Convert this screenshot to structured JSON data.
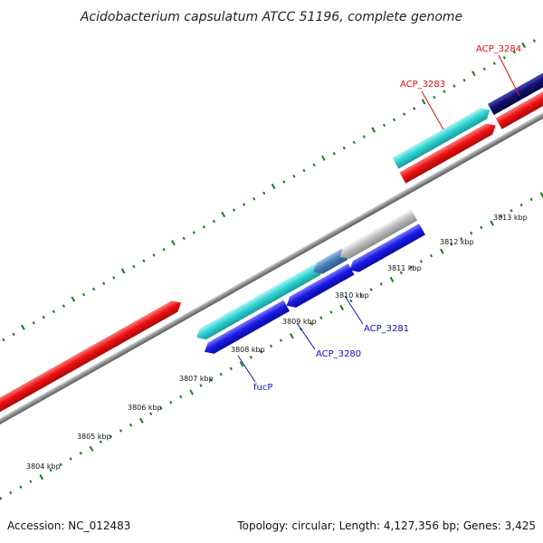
{
  "title": "Acidobacterium capsulatum ATCC 51196, complete genome",
  "footer": {
    "accession": "Accession: NC_012483",
    "summary": "Topology: circular; Length: 4,127,356 bp; Genes: 3,425"
  },
  "colors": {
    "forward_cds": "#ee1111",
    "forward_dark": "#101070",
    "reverse_cds": "#1a1ae6",
    "reverse_cyan": "#30d4d4",
    "reverse_gray": "#bcbcbc",
    "reverse_steel": "#4a7fb8",
    "backbone": "#888888",
    "tick": "#1a7a1a",
    "label_forward": "#d41010",
    "label_reverse": "#1010b0"
  },
  "scale": {
    "unit": "kbp",
    "labels": [
      "3804 kbp",
      "3805 kbp",
      "3806 kbp",
      "3807 kbp",
      "3808 kbp",
      "3809 kbp",
      "3810 kbp",
      "3811 kbp",
      "3812 kbp",
      "3813 kbp"
    ]
  },
  "labeled_genes": [
    {
      "name": "ACP_3283",
      "strand": "forward"
    },
    {
      "name": "ACP_3284",
      "strand": "forward"
    },
    {
      "name": "fucP",
      "strand": "reverse"
    },
    {
      "name": "ACP_3280",
      "strand": "reverse"
    },
    {
      "name": "ACP_3281",
      "strand": "reverse"
    }
  ]
}
